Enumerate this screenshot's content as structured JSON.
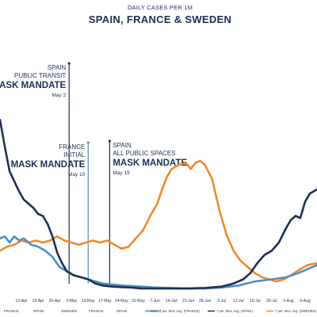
{
  "chart_data": {
    "type": "line",
    "subtitle": "DAILY CASES PER 1M",
    "title": "SPAIN, FRANCE & SWEDEN",
    "x_ticks": [
      "12-Apr",
      "19-Apr",
      "26-Apr",
      "3-May",
      "10-May",
      "17-May",
      "24-May",
      "31-May",
      "7-Jun",
      "14-Jun",
      "21-Jun",
      "28-Jun",
      "5-Jul",
      "12-Jul",
      "19-Jul",
      "26-Jul",
      "2-Aug",
      "9-Aug"
    ],
    "x_range": [
      "2020-04-03",
      "2020-08-14"
    ],
    "y_range": [
      0,
      100
    ],
    "grid": false,
    "series": [
      {
        "name": "7 per. Mov. Avg. (SPAIN)",
        "color": "#1e2f55",
        "points": [
          [
            "2020-04-03",
            84
          ],
          [
            "2020-04-05",
            71
          ],
          [
            "2020-04-07",
            59
          ],
          [
            "2020-04-09",
            54
          ],
          [
            "2020-04-11",
            49
          ],
          [
            "2020-04-13",
            45
          ],
          [
            "2020-04-15",
            43
          ],
          [
            "2020-04-17",
            41
          ],
          [
            "2020-04-19",
            38
          ],
          [
            "2020-04-21",
            37
          ],
          [
            "2020-04-23",
            33
          ],
          [
            "2020-04-25",
            27
          ],
          [
            "2020-04-27",
            19
          ],
          [
            "2020-04-29",
            14
          ],
          [
            "2020-05-01",
            10
          ],
          [
            "2020-05-04",
            8
          ],
          [
            "2020-05-07",
            7
          ],
          [
            "2020-05-10",
            6
          ],
          [
            "2020-05-13",
            4
          ],
          [
            "2020-05-16",
            3
          ],
          [
            "2020-05-20",
            2.5
          ],
          [
            "2020-05-24",
            2.2
          ],
          [
            "2020-05-28",
            2
          ],
          [
            "2020-06-01",
            1.6
          ],
          [
            "2020-06-07",
            1.5
          ],
          [
            "2020-06-14",
            1.5
          ],
          [
            "2020-06-21",
            1.6
          ],
          [
            "2020-06-28",
            1.8
          ],
          [
            "2020-07-05",
            2.5
          ],
          [
            "2020-07-10",
            4
          ],
          [
            "2020-07-14",
            6
          ],
          [
            "2020-07-17",
            9
          ],
          [
            "2020-07-20",
            14
          ],
          [
            "2020-07-23",
            18
          ],
          [
            "2020-07-26",
            20
          ],
          [
            "2020-07-29",
            24
          ],
          [
            "2020-08-01",
            31
          ],
          [
            "2020-08-03",
            35
          ],
          [
            "2020-08-05",
            37
          ],
          [
            "2020-08-07",
            36
          ],
          [
            "2020-08-09",
            44
          ],
          [
            "2020-08-11",
            48
          ],
          [
            "2020-08-14",
            50
          ]
        ]
      },
      {
        "name": "7 per. Mov. Avg. (FRANCE)",
        "color": "#4a90c8",
        "points": [
          [
            "2020-04-03",
            26
          ],
          [
            "2020-04-05",
            27
          ],
          [
            "2020-04-07",
            24
          ],
          [
            "2020-04-09",
            27
          ],
          [
            "2020-04-11",
            25
          ],
          [
            "2020-04-13",
            26
          ],
          [
            "2020-04-16",
            23
          ],
          [
            "2020-04-19",
            22
          ],
          [
            "2020-04-22",
            20
          ],
          [
            "2020-04-25",
            17
          ],
          [
            "2020-04-28",
            12
          ],
          [
            "2020-05-01",
            10
          ],
          [
            "2020-05-04",
            8
          ],
          [
            "2020-05-07",
            7
          ],
          [
            "2020-05-10",
            6
          ],
          [
            "2020-05-13",
            5
          ],
          [
            "2020-05-16",
            4
          ],
          [
            "2020-05-20",
            3.5
          ],
          [
            "2020-05-25",
            3
          ],
          [
            "2020-06-01",
            2.5
          ],
          [
            "2020-06-07",
            2
          ],
          [
            "2020-06-14",
            1.8
          ],
          [
            "2020-06-21",
            1.5
          ],
          [
            "2020-06-28",
            1.6
          ],
          [
            "2020-07-05",
            2
          ],
          [
            "2020-07-12",
            3
          ],
          [
            "2020-07-19",
            5
          ],
          [
            "2020-07-26",
            6
          ],
          [
            "2020-08-01",
            7
          ],
          [
            "2020-08-06",
            9
          ],
          [
            "2020-08-10",
            11
          ],
          [
            "2020-08-14",
            13
          ]
        ]
      },
      {
        "name": "7 per. Mov. Avg. (SWEDEN)",
        "color": "#f08a2a",
        "points": [
          [
            "2020-04-03",
            20
          ],
          [
            "2020-04-06",
            22
          ],
          [
            "2020-04-09",
            23
          ],
          [
            "2020-04-12",
            25
          ],
          [
            "2020-04-15",
            24
          ],
          [
            "2020-04-18",
            25
          ],
          [
            "2020-04-21",
            24
          ],
          [
            "2020-04-24",
            25
          ],
          [
            "2020-04-27",
            27
          ],
          [
            "2020-04-30",
            25
          ],
          [
            "2020-05-03",
            24
          ],
          [
            "2020-05-06",
            23
          ],
          [
            "2020-05-09",
            24
          ],
          [
            "2020-05-12",
            25
          ],
          [
            "2020-05-15",
            24
          ],
          [
            "2020-05-18",
            25
          ],
          [
            "2020-05-21",
            23
          ],
          [
            "2020-05-24",
            21
          ],
          [
            "2020-05-27",
            22
          ],
          [
            "2020-05-30",
            26
          ],
          [
            "2020-06-02",
            30
          ],
          [
            "2020-06-05",
            37
          ],
          [
            "2020-06-08",
            43
          ],
          [
            "2020-06-10",
            50
          ],
          [
            "2020-06-12",
            56
          ],
          [
            "2020-06-14",
            60
          ],
          [
            "2020-06-17",
            62
          ],
          [
            "2020-06-20",
            63
          ],
          [
            "2020-06-22",
            60
          ],
          [
            "2020-06-24",
            63
          ],
          [
            "2020-06-26",
            64
          ],
          [
            "2020-06-28",
            62
          ],
          [
            "2020-07-01",
            55
          ],
          [
            "2020-07-04",
            40
          ],
          [
            "2020-07-07",
            28
          ],
          [
            "2020-07-10",
            20
          ],
          [
            "2020-07-13",
            15
          ],
          [
            "2020-07-16",
            12
          ],
          [
            "2020-07-19",
            9
          ],
          [
            "2020-07-22",
            7
          ],
          [
            "2020-07-25",
            6
          ],
          [
            "2020-07-28",
            5
          ],
          [
            "2020-07-31",
            6
          ],
          [
            "2020-08-03",
            8
          ],
          [
            "2020-08-07",
            11
          ],
          [
            "2020-08-10",
            13
          ],
          [
            "2020-08-14",
            14
          ]
        ]
      }
    ],
    "events": [
      {
        "date": "2020-05-02",
        "label_lines": [
          "SPAIN",
          "PUBLIC TRANSIT"
        ],
        "headline": "MASK MANDATE",
        "date_label": "May 2",
        "color": "#1e2f55"
      },
      {
        "date": "2020-05-10",
        "label_lines": [
          "FRANCE",
          "INITIAL"
        ],
        "headline": "MASK MANDATE",
        "date_label": "May 10",
        "color": "#4a90c8"
      },
      {
        "date": "2020-05-19",
        "label_lines": [
          "SPAIN",
          "ALL PUBLIC SPACES"
        ],
        "headline": "MASK MANDATE",
        "date_label": "May 19",
        "color": "#1e2f55"
      }
    ],
    "category_labels": [
      "FRANCE",
      "SPAIN",
      "SWEDEN",
      "FRANCE",
      "SPAIN",
      "SWEDEN"
    ],
    "legend": {
      "position": "bottom-right",
      "entries": [
        {
          "label": "7 per. Mov. Avg. (FRANCE)",
          "color": "#4a90c8"
        },
        {
          "label": "7 per. Mov. Avg. (SPAIN)",
          "color": "#1e2f55"
        },
        {
          "label": "7 per. Mov. Avg. (SWEDEN)",
          "color": "#f08a2a"
        }
      ]
    }
  }
}
